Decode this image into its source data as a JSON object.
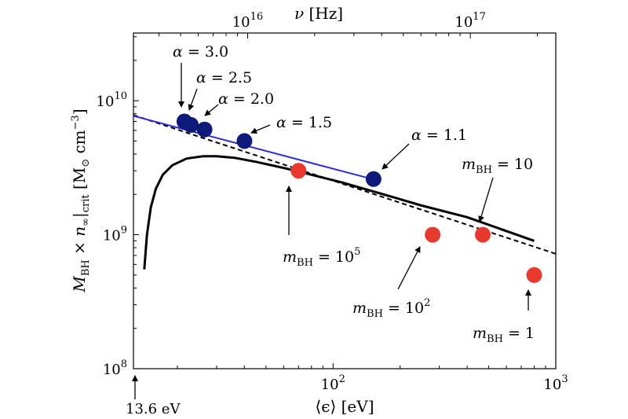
{
  "chart_data": {
    "type": "scatter",
    "x_scale": "log",
    "y_scale": "log",
    "xlim": [
      12.7,
      1000
    ],
    "ylim": [
      100000000.0,
      32000000000.0
    ],
    "top_xlim_hz": [
      3070000000000000.0,
      2.42e+17
    ],
    "xlabel": "⟨ϵ⟩ [eV]",
    "ylabel": "M_BH × n_∞|_crit [M_⊙ cm^-3]",
    "top_xlabel": "ν [Hz]",
    "x_ticks": [
      {
        "value": 100,
        "base": "10",
        "exp": "2"
      },
      {
        "value": 1000,
        "base": "10",
        "exp": "3"
      }
    ],
    "y_ticks": [
      {
        "value": 100000000.0,
        "base": "10",
        "exp": "8"
      },
      {
        "value": 1000000000.0,
        "base": "10",
        "exp": "9"
      },
      {
        "value": 10000000000.0,
        "base": "10",
        "exp": "10"
      }
    ],
    "top_ticks": [
      {
        "value": 1e+16,
        "base": "10",
        "exp": "16"
      },
      {
        "value": 1e+17,
        "base": "10",
        "exp": "17"
      }
    ],
    "marker_13_6": {
      "x": 13.6,
      "label": "13.6 eV"
    },
    "series": [
      {
        "name": "α",
        "color": "#0d1a7a",
        "points": [
          {
            "x": 21.5,
            "y": 7000000000.0,
            "label": "α = 3.0"
          },
          {
            "x": 23.0,
            "y": 6600000000.0,
            "label": "α = 2.5"
          },
          {
            "x": 26.5,
            "y": 6100000000.0,
            "label": "α = 2.0"
          },
          {
            "x": 40.0,
            "y": 5000000000.0,
            "label": "α = 1.5"
          },
          {
            "x": 152.0,
            "y": 2600000000.0,
            "label": "α = 1.1"
          }
        ],
        "fit_line": {
          "color": "#2b2bd9",
          "x": [
            12.7,
            150
          ],
          "y": [
            7700000000.0,
            2600000000.0
          ]
        }
      },
      {
        "name": "m_BH",
        "color": "#e8392c",
        "points": [
          {
            "x": 70.0,
            "y": 3000000000.0,
            "label": "m_BH = 10^5"
          },
          {
            "x": 280.0,
            "y": 1000000000.0,
            "label": "m_BH = 10^2"
          },
          {
            "x": 470.0,
            "y": 1000000000.0,
            "label": "m_BH = 10"
          },
          {
            "x": 800.0,
            "y": 500000000.0,
            "label": "m_BH = 1"
          }
        ]
      }
    ],
    "solid_curve": {
      "color": "#000000",
      "x": [
        14.2,
        14.6,
        15.2,
        16.0,
        17.2,
        19.0,
        22.0,
        26.0,
        30.0,
        36.0,
        45.0,
        60.0,
        80.0,
        110.0,
        160.0,
        250.0,
        400.0,
        800.0
      ],
      "y": [
        550000000.0,
        1000000000.0,
        1600000000.0,
        2200000000.0,
        2800000000.0,
        3300000000.0,
        3700000000.0,
        3850000000.0,
        3850000000.0,
        3750000000.0,
        3500000000.0,
        3150000000.0,
        2800000000.0,
        2450000000.0,
        2050000000.0,
        1650000000.0,
        1350000000.0,
        900000000.0
      ]
    },
    "dashed_line": {
      "color": "#000000",
      "x": [
        12.7,
        1000
      ],
      "y": [
        7800000000.0,
        720000000.0
      ]
    }
  },
  "annotations": {
    "alpha_3_0": {
      "base": "α",
      "rest": " = 3.0"
    },
    "alpha_2_5": {
      "base": "α",
      "rest": " = 2.5"
    },
    "alpha_2_0": {
      "base": "α",
      "rest": " = 2.0"
    },
    "alpha_1_5": {
      "base": "α",
      "rest": " = 1.5"
    },
    "alpha_1_1": {
      "base": "α",
      "rest": " = 1.1"
    },
    "mbh_1e5": {
      "m": "m",
      "sub": "BH",
      "eq": " = 10",
      "sup": "5"
    },
    "mbh_1e2": {
      "m": "m",
      "sub": "BH",
      "eq": " = 10",
      "sup": "2"
    },
    "mbh_10": {
      "m": "m",
      "sub": "BH",
      "eq": " = 10",
      "sup": ""
    },
    "mbh_1": {
      "m": "m",
      "sub": "BH",
      "eq": " = 1",
      "sup": ""
    }
  },
  "axis_text": {
    "x_main": "⟨ϵ⟩ [eV]",
    "top_nu": "ν",
    "top_unit": " [Hz]",
    "y_M": "M",
    "y_BH": "BH",
    "y_times": " × ",
    "y_n": "n",
    "y_inf": "∞",
    "y_crit": "|",
    "y_crit_sub": "crit",
    "y_unit_open": " [M",
    "y_odot": "⊙",
    "y_unit_mid": " cm",
    "y_unit_sup": "−3",
    "y_unit_close": "]"
  }
}
